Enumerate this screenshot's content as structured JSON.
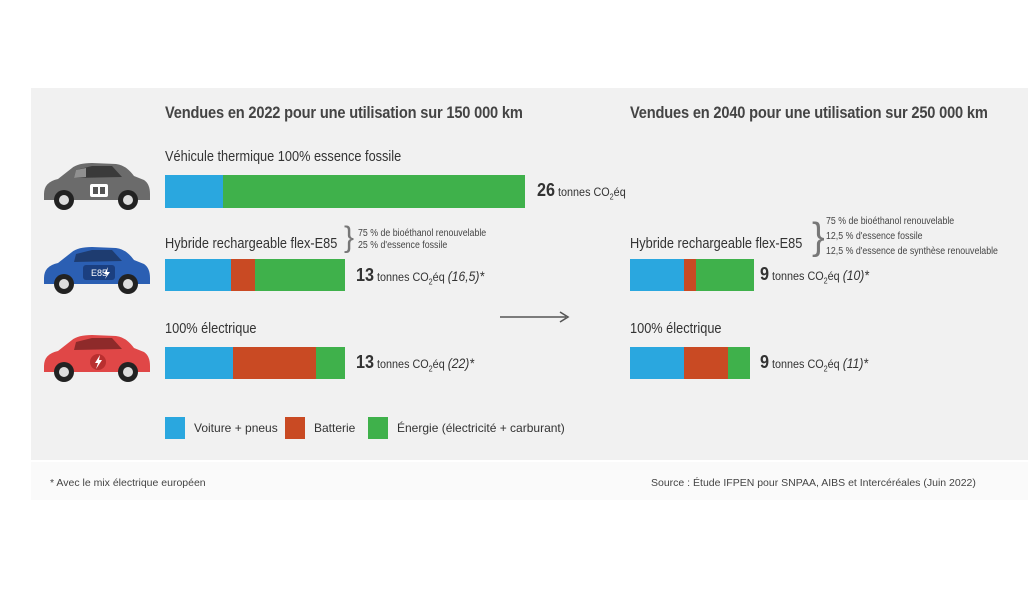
{
  "chart_data": [
    {
      "type": "bar",
      "title": "Vendues en 2022 pour une utilisation sur 150 000 km",
      "unit": "tonnes CO2éq",
      "categories": [
        "Véhicule thermique 100% essence fossile",
        "Hybride rechargeable flex-E85",
        "100% électrique"
      ],
      "series": [
        {
          "name": "Voiture + pneus",
          "values": [
            4.2,
            4.8,
            4.9
          ]
        },
        {
          "name": "Batterie",
          "values": [
            0,
            1.7,
            6.0
          ]
        },
        {
          "name": "Énergie (électricité + carburant)",
          "values": [
            21.8,
            6.5,
            2.1
          ]
        }
      ],
      "totals": [
        "26",
        "13",
        "13"
      ],
      "notes": [
        "",
        "(16,5)*",
        "(22)*"
      ],
      "annotations": [
        "75 % de bioéthanol renouvelable",
        "25 % d'essence fossile"
      ]
    },
    {
      "type": "bar",
      "title": "Vendues en 2040 pour une utilisation sur 250 000 km",
      "unit": "tonnes CO2éq",
      "categories": [
        "Hybride rechargeable flex-E85",
        "100% électrique"
      ],
      "series": [
        {
          "name": "Voiture + pneus",
          "values": [
            3.9,
            3.9
          ]
        },
        {
          "name": "Batterie",
          "values": [
            0.9,
            3.2
          ]
        },
        {
          "name": "Énergie (électricité + carburant)",
          "values": [
            4.2,
            1.6
          ]
        }
      ],
      "totals": [
        "9",
        "9"
      ],
      "notes": [
        "(10)*",
        "(11)*"
      ],
      "annotations": [
        "75 % de bioéthanol renouvelable",
        "12,5 % d'essence fossile",
        "12,5 % d'essence de synthèse renouvelable"
      ]
    }
  ],
  "colors": {
    "voiture": "#2aa7df",
    "batterie": "#c94a23",
    "energie": "#3fb14b"
  },
  "unit_text": "tonnes CO",
  "unit_sub": "2",
  "unit_suffix": "éq",
  "legend": [
    "Voiture + pneus",
    "Batterie",
    "Énergie (électricité + carburant)"
  ],
  "footnote": "* Avec le mix électrique européen",
  "source": "Source : Étude IFPEN pour SNPAA, AIBS et Intercéréales (Juin 2022)",
  "car_icons": [
    "gray-gasoline-car-icon",
    "blue-e85-hybrid-car-icon",
    "red-electric-car-icon"
  ],
  "car_badges": [
    "",
    "E85",
    ""
  ],
  "arrow_icon": "right-arrow-icon"
}
